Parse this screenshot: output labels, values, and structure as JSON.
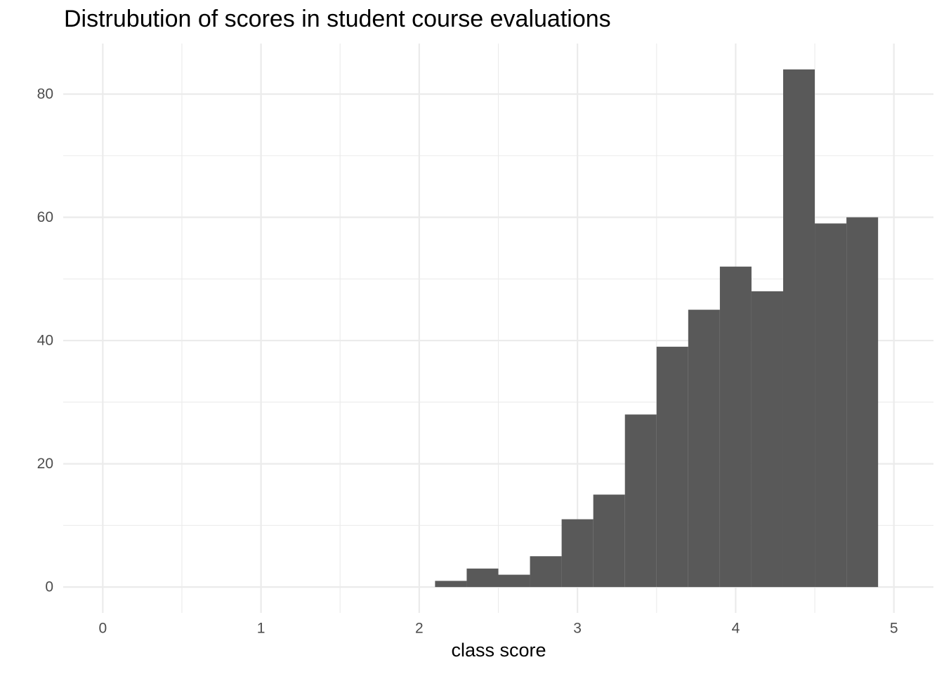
{
  "chart_data": {
    "type": "bar",
    "title": "Distrubution of scores in student course evaluations",
    "xlabel": "class score",
    "ylabel": "",
    "xlim": [
      -0.25,
      5.25
    ],
    "ylim": [
      -4.2,
      88.2
    ],
    "x_ticks": [
      0,
      1,
      2,
      3,
      4,
      5
    ],
    "y_ticks": [
      0,
      20,
      40,
      60,
      80
    ],
    "bin_width": 0.2,
    "bins": [
      {
        "x_start": 2.1,
        "x_end": 2.3,
        "count": 1
      },
      {
        "x_start": 2.3,
        "x_end": 2.5,
        "count": 3
      },
      {
        "x_start": 2.5,
        "x_end": 2.7,
        "count": 2
      },
      {
        "x_start": 2.7,
        "x_end": 2.9,
        "count": 5
      },
      {
        "x_start": 2.9,
        "x_end": 3.1,
        "count": 11
      },
      {
        "x_start": 3.1,
        "x_end": 3.3,
        "count": 15
      },
      {
        "x_start": 3.3,
        "x_end": 3.5,
        "count": 28
      },
      {
        "x_start": 3.5,
        "x_end": 3.7,
        "count": 39
      },
      {
        "x_start": 3.7,
        "x_end": 3.9,
        "count": 45
      },
      {
        "x_start": 3.9,
        "x_end": 4.1,
        "count": 52
      },
      {
        "x_start": 4.1,
        "x_end": 4.3,
        "count": 48
      },
      {
        "x_start": 4.3,
        "x_end": 4.5,
        "count": 84
      },
      {
        "x_start": 4.5,
        "x_end": 4.7,
        "count": 59
      },
      {
        "x_start": 4.7,
        "x_end": 4.9,
        "count": 60
      }
    ],
    "grid": true,
    "bar_color": "#595959",
    "grid_color": "#ebebeb"
  }
}
